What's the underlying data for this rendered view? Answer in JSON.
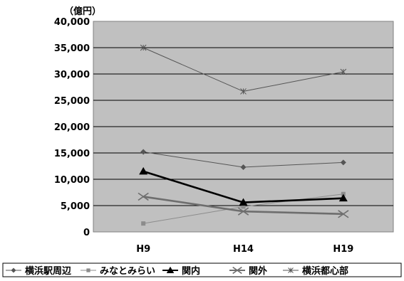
{
  "chart_data": {
    "type": "line",
    "title": "",
    "xlabel": "",
    "ylabel": "",
    "unit_label": "（億円）",
    "categories": [
      "H9",
      "H14",
      "H19"
    ],
    "ylim": [
      0,
      40000
    ],
    "yticks": [
      0,
      5000,
      10000,
      15000,
      20000,
      25000,
      30000,
      35000,
      40000
    ],
    "ytick_labels": [
      "0",
      "5,000",
      "10,000",
      "15,000",
      "20,000",
      "25,000",
      "30,000",
      "35,000",
      "40,000"
    ],
    "grid": "horizontal",
    "plot_background": "#c0c0c0",
    "legend_position": "bottom",
    "series": [
      {
        "name": "横浜駅周辺",
        "values": [
          15200,
          12300,
          13200
        ],
        "color": "#555555",
        "marker": "diamond",
        "weight": "normal"
      },
      {
        "name": "みなとみらい",
        "values": [
          1600,
          4800,
          7200
        ],
        "color": "#8c8c8c",
        "marker": "square",
        "weight": "normal"
      },
      {
        "name": "関内",
        "values": [
          11500,
          5600,
          6400
        ],
        "color": "#000000",
        "marker": "triangle",
        "weight": "bold"
      },
      {
        "name": "関外",
        "values": [
          6700,
          3900,
          3400
        ],
        "color": "#6e6e6e",
        "marker": "x",
        "weight": "bold"
      },
      {
        "name": "横浜都心部",
        "values": [
          35000,
          26700,
          30400
        ],
        "color": "#555555",
        "marker": "star",
        "weight": "normal"
      }
    ]
  }
}
